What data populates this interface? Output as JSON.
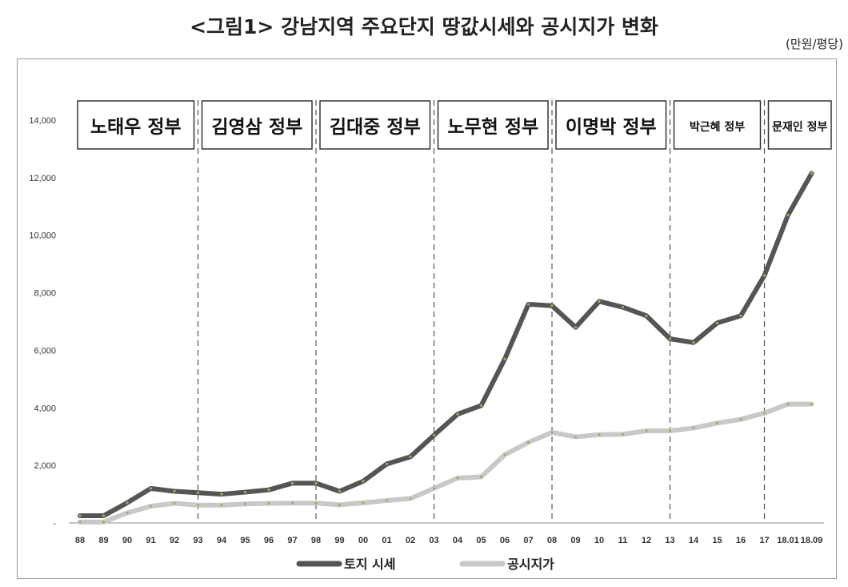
{
  "title": "<그림1> 강남지역 주요단지 땅값시세와 공시지가 변화",
  "unit_label": "(만원/평당)",
  "chart_data": {
    "type": "line",
    "title": "<그림1> 강남지역 주요단지 땅값시세와 공시지가 변화",
    "ylabel": "(만원/평당)",
    "xlabel": "",
    "ylim": [
      0,
      14000
    ],
    "y_ticks": [
      "-",
      "2,000",
      "4,000",
      "6,000",
      "8,000",
      "10,000",
      "12,000",
      "14,000"
    ],
    "categories": [
      "88",
      "89",
      "90",
      "91",
      "92",
      "93",
      "94",
      "95",
      "96",
      "97",
      "98",
      "99",
      "00",
      "01",
      "02",
      "03",
      "04",
      "05",
      "06",
      "07",
      "08",
      "09",
      "10",
      "11",
      "12",
      "13",
      "14",
      "15",
      "16",
      "17",
      "18.01",
      "18.09"
    ],
    "series": [
      {
        "name": "토지 시세",
        "color": "#555555",
        "values": [
          250,
          250,
          700,
          1200,
          1100,
          1050,
          1000,
          1070,
          1150,
          1380,
          1380,
          1100,
          1450,
          2050,
          2300,
          3050,
          3780,
          4080,
          5700,
          7600,
          7550,
          6800,
          7700,
          7500,
          7200,
          6400,
          6270,
          6950,
          7200,
          8600,
          10700,
          12150
        ]
      },
      {
        "name": "공시지가",
        "color": "#c8c8c8",
        "values": [
          30,
          30,
          350,
          580,
          680,
          620,
          620,
          660,
          680,
          690,
          690,
          630,
          700,
          780,
          850,
          1200,
          1560,
          1600,
          2370,
          2800,
          3150,
          2990,
          3070,
          3080,
          3200,
          3200,
          3300,
          3470,
          3600,
          3820,
          4130,
          4130
        ]
      }
    ],
    "governments": [
      {
        "label": "노태우 정부",
        "start": "88",
        "end": "93"
      },
      {
        "label": "김영삼 정부",
        "start": "93",
        "end": "98"
      },
      {
        "label": "김대중 정부",
        "start": "98",
        "end": "03"
      },
      {
        "label": "노무현 정부",
        "start": "03",
        "end": "08"
      },
      {
        "label": "이명박 정부",
        "start": "08",
        "end": "13"
      },
      {
        "label": "박근혜 정부",
        "start": "13",
        "end": "17"
      },
      {
        "label": "문재인 정부",
        "start": "17",
        "end": "18.09"
      }
    ],
    "legend_position": "bottom",
    "grid": false
  }
}
